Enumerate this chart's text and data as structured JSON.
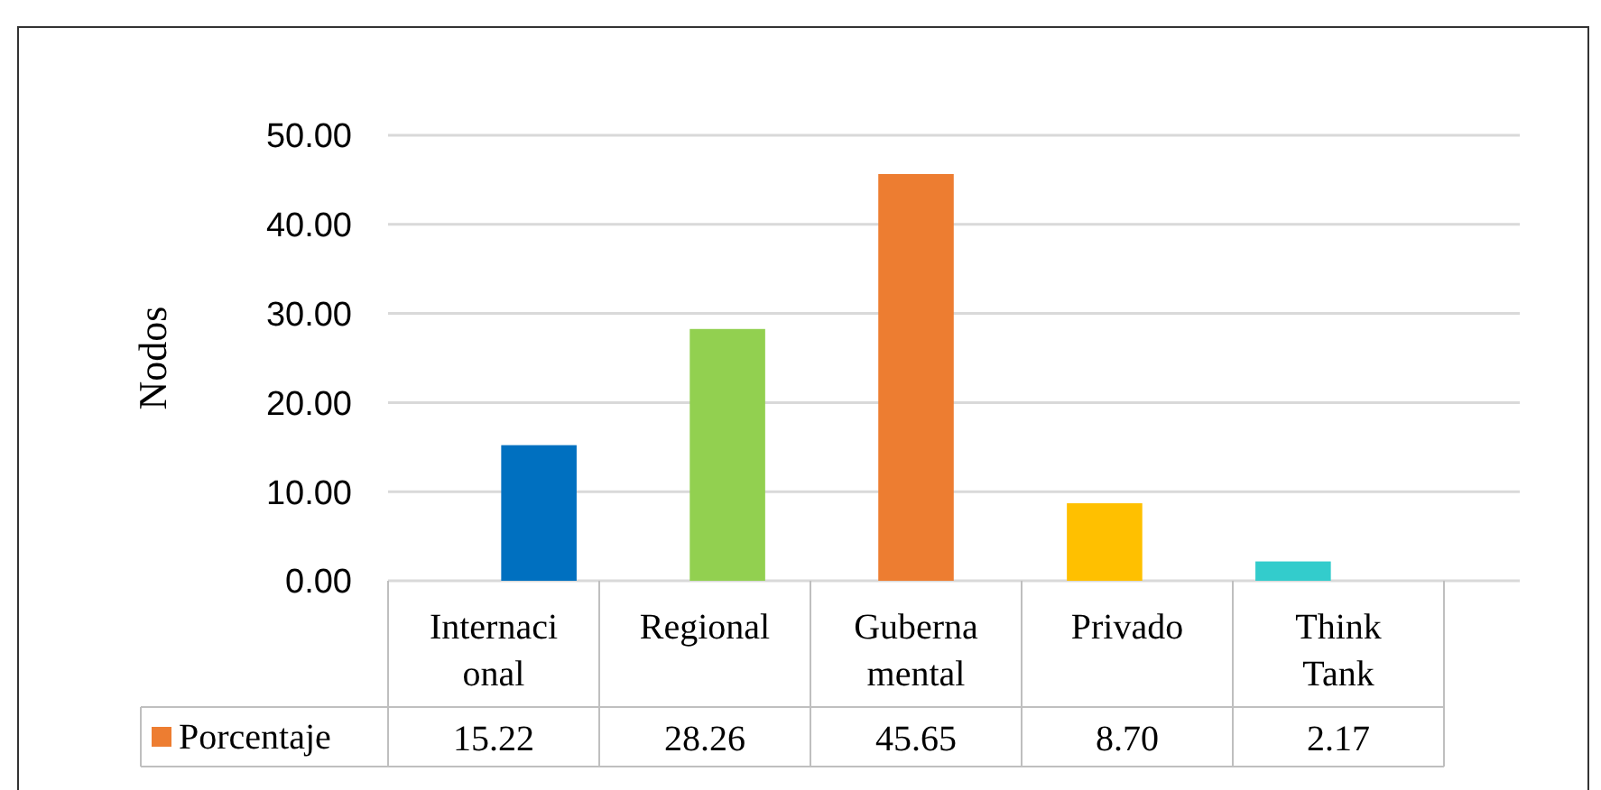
{
  "chart_data": {
    "type": "bar",
    "ylabel": "Nodos",
    "categories": [
      "Internacional",
      "Regional",
      "Gubernamental",
      "Privado",
      "Think Tank"
    ],
    "series": [
      {
        "name": "Porcentaje",
        "color": "#ed7d31",
        "colors": [
          "#0070c0",
          "#92d050",
          "#ed7d31",
          "#ffc000",
          "#33cccc"
        ],
        "values": [
          15.22,
          28.26,
          45.65,
          8.7,
          2.17
        ],
        "value_labels": [
          "15.22",
          "28.26",
          "45.65",
          "8.70",
          "2.17"
        ]
      }
    ],
    "ylim": [
      0,
      50
    ],
    "yticks": [
      {
        "value": 0,
        "label": "0.00"
      },
      {
        "value": 10,
        "label": "10.00"
      },
      {
        "value": 20,
        "label": "20.00"
      },
      {
        "value": 30,
        "label": "30.00"
      },
      {
        "value": 40,
        "label": "40.00"
      },
      {
        "value": 50,
        "label": "50.00"
      }
    ],
    "grid": "y",
    "legend": "bottom"
  }
}
